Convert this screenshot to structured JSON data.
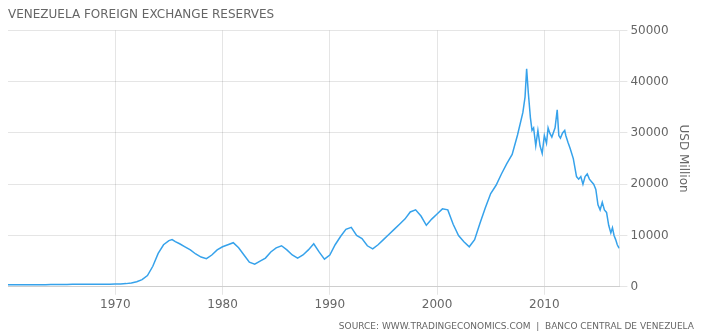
{
  "chart_data": {
    "type": "line",
    "title": "VENEZUELA FOREIGN EXCHANGE RESERVES",
    "y_label": "USD Million",
    "annotations": [
      "SOURCE: WWW.TRADINGECONOMICS.COM  |  BANCO CENTRAL DE VENEZUELA"
    ],
    "x": [
      1960.0,
      1960.5,
      1961.0,
      1961.5,
      1962.0,
      1962.5,
      1963.0,
      1963.5,
      1964.0,
      1964.5,
      1965.0,
      1965.5,
      1966.0,
      1966.5,
      1967.0,
      1967.5,
      1968.0,
      1968.5,
      1969.0,
      1969.5,
      1970.0,
      1970.5,
      1971.0,
      1971.5,
      1972.0,
      1972.5,
      1973.0,
      1973.5,
      1974.0,
      1974.5,
      1975.0,
      1975.3,
      1975.6,
      1976.0,
      1976.5,
      1977.0,
      1977.5,
      1978.0,
      1978.5,
      1979.0,
      1979.5,
      1980.0,
      1980.5,
      1981.0,
      1981.5,
      1982.0,
      1982.5,
      1983.0,
      1983.5,
      1984.0,
      1984.5,
      1985.0,
      1985.5,
      1986.0,
      1986.5,
      1987.0,
      1987.5,
      1988.0,
      1988.5,
      1989.0,
      1989.5,
      1990.0,
      1990.5,
      1991.0,
      1991.5,
      1992.0,
      1992.5,
      1993.0,
      1993.5,
      1994.0,
      1994.5,
      1995.0,
      1995.5,
      1996.0,
      1996.5,
      1997.0,
      1997.5,
      1998.0,
      1998.5,
      1999.0,
      1999.5,
      2000.0,
      2000.5,
      2001.0,
      2001.5,
      2002.0,
      2002.5,
      2003.0,
      2003.5,
      2004.0,
      2004.5,
      2005.0,
      2005.5,
      2006.0,
      2006.5,
      2007.0,
      2007.5,
      2008.0,
      2008.2,
      2008.35,
      2008.5,
      2008.7,
      2008.85,
      2009.0,
      2009.2,
      2009.4,
      2009.6,
      2009.8,
      2010.0,
      2010.2,
      2010.35,
      2010.5,
      2010.7,
      2011.0,
      2011.2,
      2011.35,
      2011.5,
      2011.7,
      2011.9,
      2012.0,
      2012.2,
      2012.4,
      2012.7,
      2013.0,
      2013.2,
      2013.4,
      2013.6,
      2013.8,
      2014.0,
      2014.2,
      2014.4,
      2014.6,
      2014.8,
      2015.0,
      2015.2,
      2015.4,
      2015.6,
      2015.8,
      2016.0,
      2016.2,
      2016.35,
      2016.5,
      2016.65,
      2016.8,
      2016.9,
      2017.0
    ],
    "values": [
      380,
      380,
      390,
      390,
      400,
      400,
      410,
      415,
      430,
      440,
      460,
      470,
      490,
      490,
      480,
      480,
      490,
      500,
      510,
      520,
      530,
      560,
      620,
      750,
      1000,
      1400,
      2200,
      4000,
      6500,
      8200,
      9000,
      9200,
      8800,
      8400,
      7800,
      7200,
      6400,
      5800,
      5500,
      6200,
      7200,
      7800,
      8200,
      8600,
      7600,
      6200,
      4800,
      4400,
      5000,
      5600,
      6800,
      7600,
      8000,
      7200,
      6200,
      5600,
      6200,
      7200,
      8400,
      6800,
      5400,
      6200,
      8200,
      9800,
      11200,
      11600,
      10000,
      9400,
      8000,
      7400,
      8200,
      9200,
      10200,
      11200,
      12200,
      13200,
      14600,
      15000,
      13800,
      12000,
      13200,
      14200,
      15200,
      15000,
      12200,
      10000,
      8800,
      7800,
      9200,
      12400,
      15400,
      18200,
      19800,
      22000,
      24000,
      25800,
      29600,
      34000,
      37000,
      42500,
      38000,
      33000,
      30500,
      31000,
      27500,
      30500,
      27500,
      26000,
      29500,
      28000,
      31000,
      30000,
      29200,
      31000,
      34500,
      29500,
      29000,
      30000,
      30500,
      29500,
      28200,
      27000,
      25000,
      21500,
      21000,
      21500,
      20000,
      21500,
      22000,
      21000,
      20500,
      20000,
      19000,
      16000,
      15000,
      16500,
      15000,
      14500,
      12000,
      10500,
      11500,
      10000,
      9200,
      8200,
      7800,
      7500
    ],
    "xlim": [
      1960,
      2017
    ],
    "xticks": [
      1970,
      1980,
      1990,
      2000,
      2010
    ],
    "ylim": [
      0,
      50000
    ],
    "yticks": [
      0,
      10000,
      20000,
      30000,
      40000,
      50000
    ],
    "grid": true
  }
}
